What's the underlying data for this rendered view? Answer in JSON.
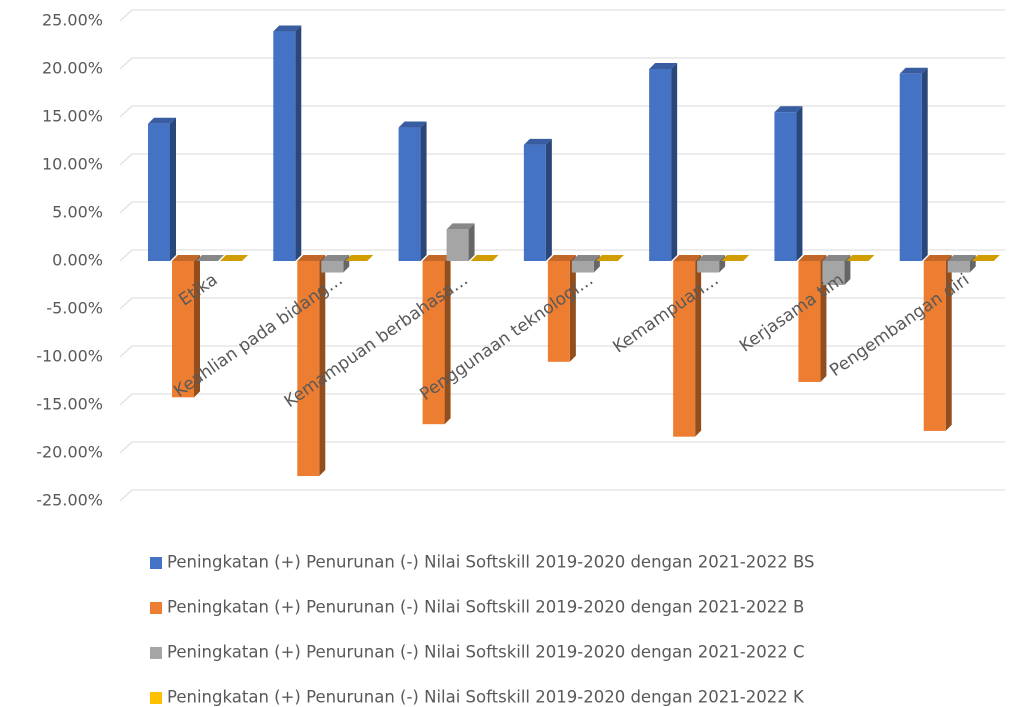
{
  "chart_data": {
    "type": "bar3d",
    "categories": [
      "Etika",
      "Keahlian pada bidang…",
      "Kemampuan berbahasa…",
      "Penggunaan teknologi…",
      "Kemampuan…",
      "Kerjasama tim",
      "Pengembangan diri"
    ],
    "series": [
      {
        "name": "Peningkatan (+) Penurunan (-) Nilai Softskill 2019-2020 dengan 2021-2022 BS",
        "color": "#4472c4",
        "values": [
          14.3,
          23.9,
          13.9,
          12.1,
          20.0,
          15.5,
          19.5
        ]
      },
      {
        "name": "Peningkatan (+) Penurunan (-) Nilai Softskill 2019-2020 dengan 2021-2022 B",
        "color": "#ed7d31",
        "values": [
          -14.2,
          -22.4,
          -17.0,
          -10.5,
          -18.3,
          -12.6,
          -17.7
        ]
      },
      {
        "name": "Peningkatan (+) Penurunan (-) Nilai Softskill 2019-2020 dengan 2021-2022 C",
        "color": "#a5a5a5",
        "values": [
          0,
          -1.2,
          3.3,
          -1.2,
          -1.2,
          -2.5,
          -1.2
        ]
      },
      {
        "name": "Peningkatan (+) Penurunan (-) Nilai Softskill 2019-2020 dengan 2021-2022 K",
        "color": "#ffc000",
        "values": [
          0,
          0,
          0,
          0,
          0,
          0,
          0
        ]
      }
    ],
    "ylim": [
      -25,
      25
    ],
    "yticks": [
      {
        "value": 25,
        "label": "25.00%"
      },
      {
        "value": 20,
        "label": "20.00%"
      },
      {
        "value": 15,
        "label": "15.00%"
      },
      {
        "value": 10,
        "label": "10.00%"
      },
      {
        "value": 5,
        "label": "5.00%"
      },
      {
        "value": 0,
        "label": "0.00%"
      },
      {
        "value": -5,
        "label": "-5.00%"
      },
      {
        "value": -10,
        "label": "-10.00%"
      },
      {
        "value": -15,
        "label": "-15.00%"
      },
      {
        "value": -20,
        "label": "-20.00%"
      },
      {
        "value": -25,
        "label": "-25.00%"
      }
    ],
    "grid": true,
    "legend": "bottom"
  }
}
